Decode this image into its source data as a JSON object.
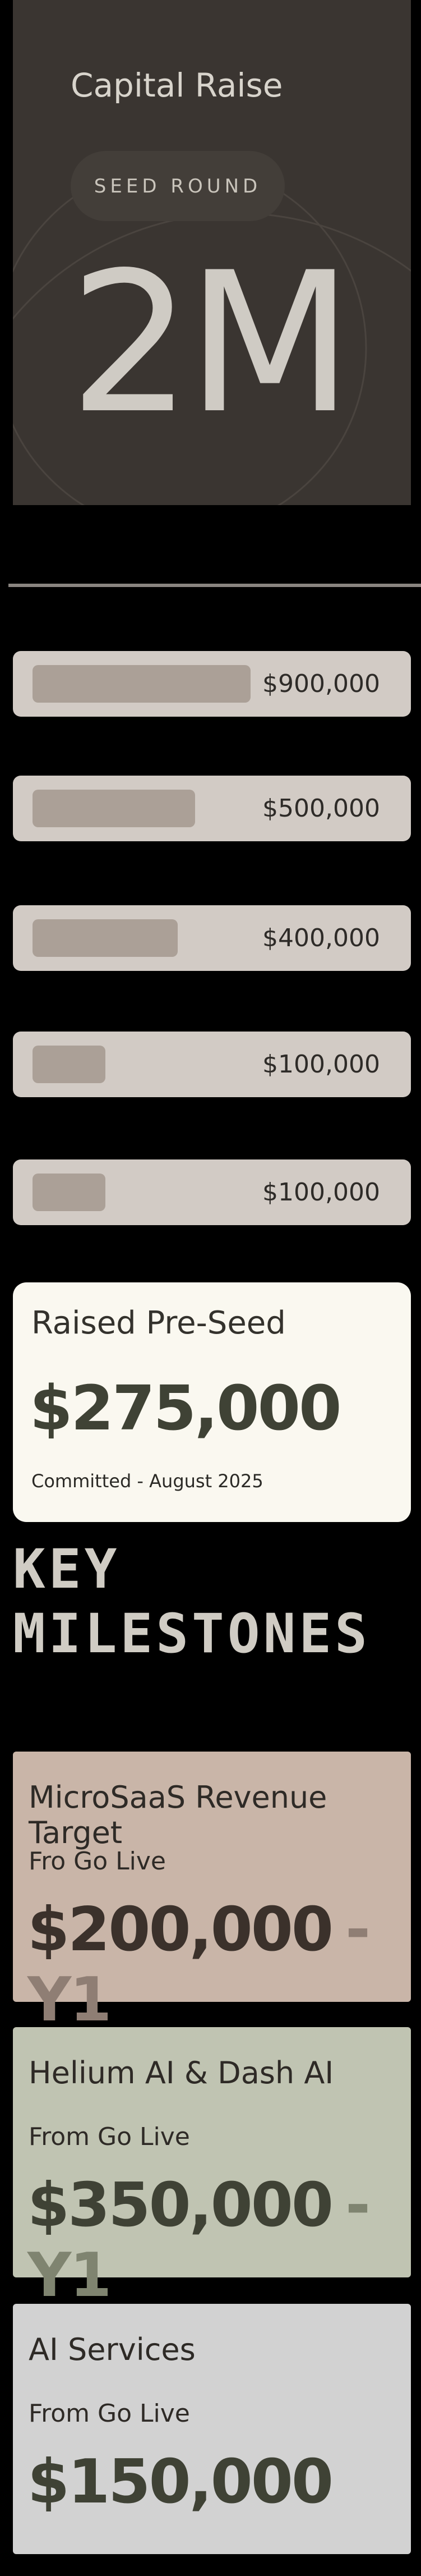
{
  "header": {
    "title": "Capital Raise",
    "badge": "SEED ROUND",
    "amount": "2M"
  },
  "commitments": {
    "values": [
      900000,
      500000,
      400000,
      100000,
      100000
    ],
    "value_labels": [
      "$900,000",
      "$500,000",
      "$400,000",
      "$100,000",
      "$100,000"
    ]
  },
  "pre_seed": {
    "title": "Raised Pre-Seed",
    "amount": "$275,000",
    "note": "Committed - August 2025"
  },
  "milestones_heading": [
    "KEY",
    "MILESTONES"
  ],
  "milestones": [
    {
      "title": "MicroSaaS Revenue Target",
      "subtitle": "Fro Go Live",
      "amount": "$200,000",
      "suffix": "- Y1"
    },
    {
      "title": "Helium AI & Dash AI",
      "subtitle": "From Go Live",
      "amount": "$350,000",
      "suffix": "- Y1"
    },
    {
      "title": "AI Services",
      "subtitle": "From Go Live",
      "amount": "$150,000"
    }
  ]
}
